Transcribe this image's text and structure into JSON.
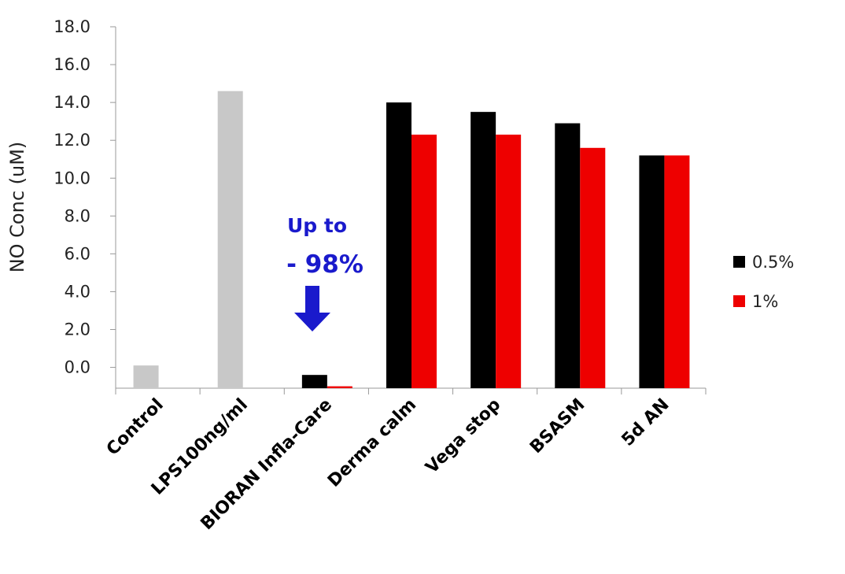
{
  "chart_data": {
    "type": "bar",
    "y_label": "NO Conc (uM)",
    "categories": [
      "Control",
      "LPS100ng/ml",
      "BIORAN Infla-Care",
      "Derma calm",
      "Vega stop",
      "BSASM",
      "5d AN"
    ],
    "series": [
      {
        "name": "0.5%",
        "color": "#000000",
        "colors": [
          "#c8c8c8",
          "#c8c8c8",
          "#000000",
          "#000000",
          "#000000",
          "#000000",
          "#000000"
        ],
        "values": [
          0.1,
          14.6,
          -0.4,
          14.0,
          13.5,
          12.9,
          11.2
        ]
      },
      {
        "name": "1%",
        "color": "#ee0000",
        "values": [
          null,
          null,
          -1.0,
          12.3,
          12.3,
          11.6,
          11.2
        ]
      }
    ],
    "ylim": [
      -1.1,
      18.0
    ],
    "yticks": [
      {
        "value": 0,
        "label": "0.0"
      },
      {
        "value": 2,
        "label": "2.0"
      },
      {
        "value": 4,
        "label": "4.0"
      },
      {
        "value": 6,
        "label": "6.0"
      },
      {
        "value": 8,
        "label": "8.0"
      },
      {
        "value": 10,
        "label": "10.0"
      },
      {
        "value": 12,
        "label": "12.0"
      },
      {
        "value": 14,
        "label": "14.0"
      },
      {
        "value": 16,
        "label": "16.0"
      },
      {
        "value": 18,
        "label": "18.0"
      }
    ],
    "annotations": [
      "Up to",
      "- 98%"
    ],
    "annotation_color": "#1a1acc",
    "legend": "right"
  }
}
